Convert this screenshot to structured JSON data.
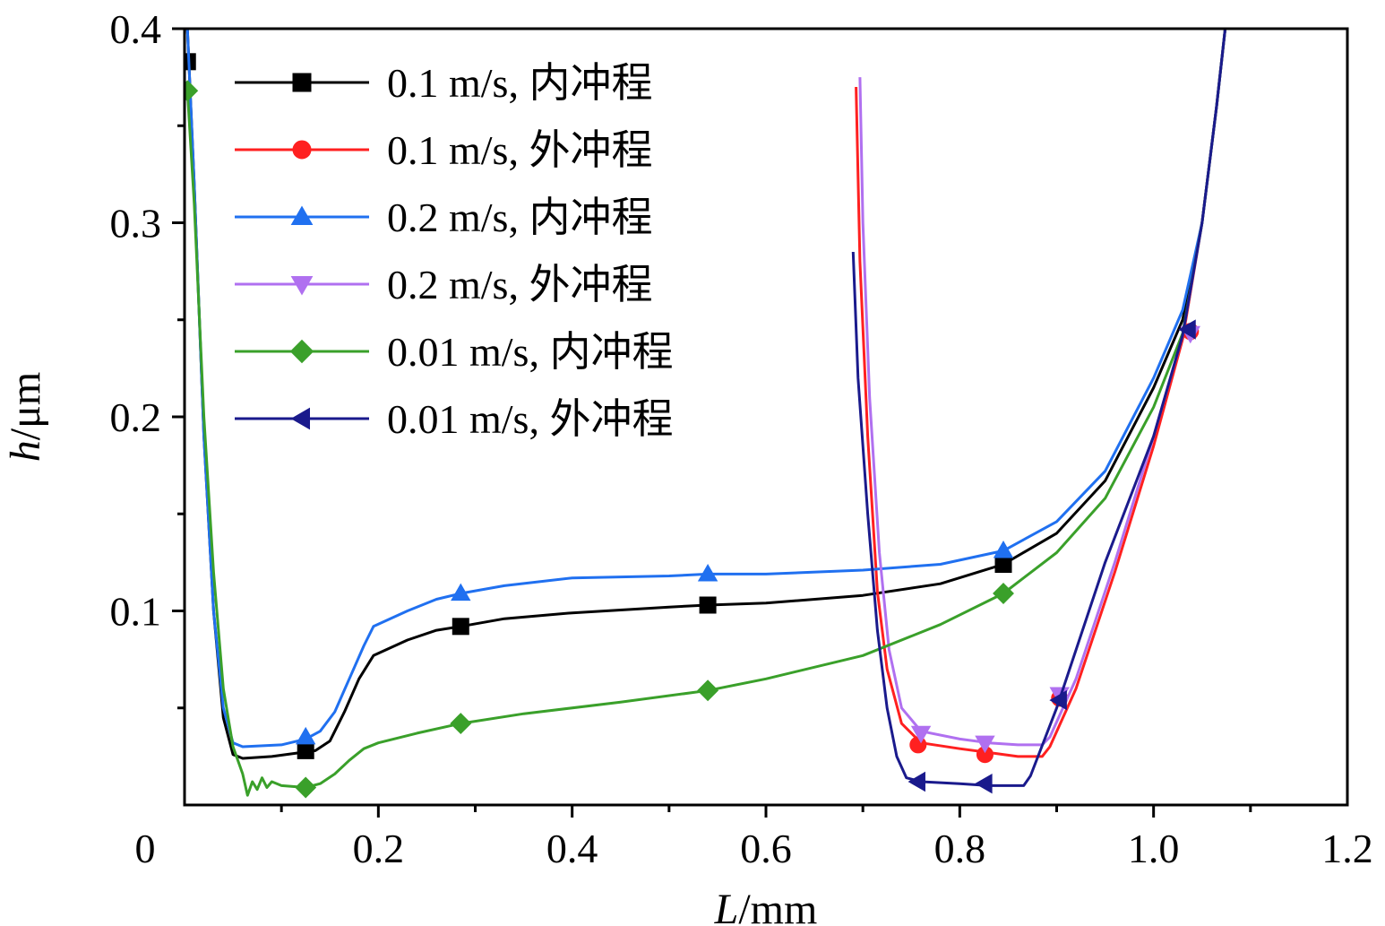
{
  "chart_data": {
    "type": "line",
    "title": "",
    "xlabel": {
      "italic": "L",
      "rest": "/mm"
    },
    "ylabel": {
      "italic": "h",
      "rest": "/μm"
    },
    "xlim": [
      0,
      1.2
    ],
    "ylim": [
      0,
      0.4
    ],
    "x_ticks": [
      0,
      0.2,
      0.4,
      0.6,
      0.8,
      1.0,
      1.2
    ],
    "x_tick_labels": [
      "0",
      "0.2",
      "0.4",
      "0.6",
      "0.8",
      "1.0",
      "1.2"
    ],
    "y_ticks": [
      0.1,
      0.2,
      0.3,
      0.4
    ],
    "y_tick_labels": [
      "0.1",
      "0.2",
      "0.3",
      "0.4"
    ],
    "x_minor_ticks": [
      0.1,
      0.3,
      0.5,
      0.7,
      0.9,
      1.1
    ],
    "y_minor_ticks": [
      0.05,
      0.15,
      0.25,
      0.35
    ],
    "grid": false,
    "legend_position": "top-left",
    "series": [
      {
        "name": "0.1 m/s, 内冲程",
        "color": "#000000",
        "marker": "square",
        "points": [
          [
            0.003,
            0.4
          ],
          [
            0.01,
            0.32
          ],
          [
            0.02,
            0.19
          ],
          [
            0.03,
            0.1
          ],
          [
            0.04,
            0.045
          ],
          [
            0.05,
            0.026
          ],
          [
            0.06,
            0.024
          ],
          [
            0.09,
            0.025
          ],
          [
            0.12,
            0.027
          ],
          [
            0.135,
            0.028
          ],
          [
            0.15,
            0.033
          ],
          [
            0.165,
            0.048
          ],
          [
            0.18,
            0.065
          ],
          [
            0.195,
            0.077
          ],
          [
            0.23,
            0.085
          ],
          [
            0.26,
            0.09
          ],
          [
            0.285,
            0.092
          ],
          [
            0.33,
            0.096
          ],
          [
            0.4,
            0.099
          ],
          [
            0.5,
            0.102
          ],
          [
            0.54,
            0.103
          ],
          [
            0.6,
            0.104
          ],
          [
            0.7,
            0.108
          ],
          [
            0.78,
            0.114
          ],
          [
            0.845,
            0.124
          ],
          [
            0.9,
            0.14
          ],
          [
            0.95,
            0.167
          ],
          [
            1.0,
            0.215
          ],
          [
            1.03,
            0.25
          ],
          [
            1.05,
            0.3
          ],
          [
            1.065,
            0.36
          ],
          [
            1.075,
            0.405
          ]
        ],
        "markers": [
          [
            0.003,
            0.383
          ],
          [
            0.125,
            0.028
          ],
          [
            0.285,
            0.092
          ],
          [
            0.54,
            0.103
          ],
          [
            0.845,
            0.124
          ]
        ]
      },
      {
        "name": "0.1 m/s, 外冲程",
        "color": "#ff2020",
        "marker": "circle",
        "points": [
          [
            0.693,
            0.37
          ],
          [
            0.697,
            0.28
          ],
          [
            0.705,
            0.19
          ],
          [
            0.715,
            0.11
          ],
          [
            0.725,
            0.07
          ],
          [
            0.74,
            0.042
          ],
          [
            0.76,
            0.032
          ],
          [
            0.8,
            0.029
          ],
          [
            0.83,
            0.027
          ],
          [
            0.86,
            0.025
          ],
          [
            0.885,
            0.025
          ],
          [
            0.893,
            0.03
          ],
          [
            0.92,
            0.06
          ],
          [
            0.96,
            0.12
          ],
          [
            1.0,
            0.185
          ],
          [
            1.03,
            0.24
          ],
          [
            1.05,
            0.3
          ],
          [
            1.065,
            0.36
          ],
          [
            1.075,
            0.405
          ]
        ],
        "markers": [
          [
            0.757,
            0.031
          ],
          [
            0.826,
            0.026
          ],
          [
            0.903,
            0.055
          ],
          [
            1.038,
            0.244
          ]
        ]
      },
      {
        "name": "0.2 m/s, 内冲程",
        "color": "#2070f0",
        "marker": "triangle-up",
        "points": [
          [
            0.003,
            0.4
          ],
          [
            0.01,
            0.32
          ],
          [
            0.02,
            0.19
          ],
          [
            0.03,
            0.1
          ],
          [
            0.04,
            0.05
          ],
          [
            0.05,
            0.032
          ],
          [
            0.06,
            0.03
          ],
          [
            0.1,
            0.031
          ],
          [
            0.125,
            0.034
          ],
          [
            0.14,
            0.038
          ],
          [
            0.155,
            0.048
          ],
          [
            0.17,
            0.065
          ],
          [
            0.185,
            0.082
          ],
          [
            0.195,
            0.092
          ],
          [
            0.23,
            0.1
          ],
          [
            0.26,
            0.106
          ],
          [
            0.285,
            0.109
          ],
          [
            0.33,
            0.113
          ],
          [
            0.4,
            0.117
          ],
          [
            0.5,
            0.118
          ],
          [
            0.54,
            0.119
          ],
          [
            0.6,
            0.119
          ],
          [
            0.7,
            0.121
          ],
          [
            0.78,
            0.124
          ],
          [
            0.845,
            0.131
          ],
          [
            0.9,
            0.146
          ],
          [
            0.95,
            0.172
          ],
          [
            1.0,
            0.22
          ],
          [
            1.03,
            0.255
          ],
          [
            1.05,
            0.3
          ],
          [
            1.065,
            0.36
          ],
          [
            1.075,
            0.405
          ]
        ],
        "markers": [
          [
            0.125,
            0.035
          ],
          [
            0.285,
            0.109
          ],
          [
            0.54,
            0.119
          ],
          [
            0.845,
            0.131
          ]
        ]
      },
      {
        "name": "0.2 m/s, 外冲程",
        "color": "#b070f0",
        "marker": "triangle-down",
        "points": [
          [
            0.697,
            0.375
          ],
          [
            0.7,
            0.3
          ],
          [
            0.707,
            0.21
          ],
          [
            0.717,
            0.13
          ],
          [
            0.727,
            0.08
          ],
          [
            0.74,
            0.05
          ],
          [
            0.76,
            0.038
          ],
          [
            0.8,
            0.034
          ],
          [
            0.83,
            0.032
          ],
          [
            0.86,
            0.031
          ],
          [
            0.885,
            0.031
          ],
          [
            0.893,
            0.035
          ],
          [
            0.92,
            0.065
          ],
          [
            0.96,
            0.125
          ],
          [
            1.0,
            0.19
          ],
          [
            1.03,
            0.242
          ],
          [
            1.05,
            0.3
          ],
          [
            1.065,
            0.36
          ],
          [
            1.075,
            0.405
          ]
        ],
        "markers": [
          [
            0.76,
            0.037
          ],
          [
            0.826,
            0.032
          ],
          [
            0.903,
            0.057
          ],
          [
            1.038,
            0.243
          ]
        ]
      },
      {
        "name": "0.01 m/s, 内冲程",
        "color": "#3aa02a",
        "marker": "diamond",
        "points": [
          [
            0.003,
            0.368
          ],
          [
            0.01,
            0.31
          ],
          [
            0.02,
            0.2
          ],
          [
            0.03,
            0.12
          ],
          [
            0.04,
            0.06
          ],
          [
            0.05,
            0.03
          ],
          [
            0.06,
            0.016
          ],
          [
            0.065,
            0.005
          ],
          [
            0.07,
            0.012
          ],
          [
            0.075,
            0.008
          ],
          [
            0.08,
            0.014
          ],
          [
            0.085,
            0.009
          ],
          [
            0.09,
            0.012
          ],
          [
            0.1,
            0.01
          ],
          [
            0.125,
            0.009
          ],
          [
            0.14,
            0.011
          ],
          [
            0.155,
            0.016
          ],
          [
            0.17,
            0.023
          ],
          [
            0.185,
            0.029
          ],
          [
            0.2,
            0.032
          ],
          [
            0.24,
            0.037
          ],
          [
            0.285,
            0.042
          ],
          [
            0.35,
            0.047
          ],
          [
            0.45,
            0.053
          ],
          [
            0.54,
            0.059
          ],
          [
            0.6,
            0.065
          ],
          [
            0.7,
            0.077
          ],
          [
            0.78,
            0.093
          ],
          [
            0.845,
            0.109
          ],
          [
            0.9,
            0.13
          ],
          [
            0.95,
            0.158
          ],
          [
            1.0,
            0.205
          ],
          [
            1.03,
            0.243
          ],
          [
            1.05,
            0.3
          ],
          [
            1.065,
            0.36
          ],
          [
            1.075,
            0.405
          ]
        ],
        "markers": [
          [
            0.003,
            0.368
          ],
          [
            0.125,
            0.009
          ],
          [
            0.285,
            0.042
          ],
          [
            0.54,
            0.059
          ],
          [
            0.845,
            0.109
          ]
        ]
      },
      {
        "name": "0.01 m/s, 外冲程",
        "color": "#1a1a8c",
        "marker": "triangle-left",
        "points": [
          [
            0.69,
            0.285
          ],
          [
            0.695,
            0.22
          ],
          [
            0.705,
            0.15
          ],
          [
            0.715,
            0.09
          ],
          [
            0.725,
            0.05
          ],
          [
            0.735,
            0.025
          ],
          [
            0.745,
            0.014
          ],
          [
            0.76,
            0.012
          ],
          [
            0.8,
            0.011
          ],
          [
            0.83,
            0.01
          ],
          [
            0.866,
            0.01
          ],
          [
            0.873,
            0.015
          ],
          [
            0.9,
            0.05
          ],
          [
            0.95,
            0.125
          ],
          [
            1.0,
            0.19
          ],
          [
            1.03,
            0.242
          ],
          [
            1.05,
            0.3
          ],
          [
            1.065,
            0.36
          ],
          [
            1.075,
            0.405
          ]
        ],
        "markers": [
          [
            0.757,
            0.012
          ],
          [
            0.826,
            0.011
          ],
          [
            0.903,
            0.054
          ],
          [
            1.036,
            0.245
          ]
        ]
      }
    ]
  }
}
